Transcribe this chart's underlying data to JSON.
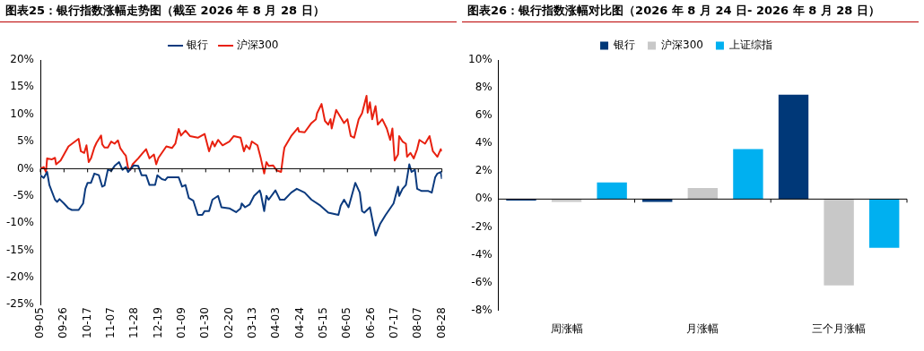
{
  "chart_data": [
    {
      "type": "line",
      "title": "图表25：银行指数涨幅走势图（截至 2026 年 8 月 28 日）",
      "legend": "top",
      "grid": false,
      "ref_lines": [
        {
          "axis": "y",
          "value": 0,
          "color": "#000000"
        }
      ],
      "marker": "none",
      "line_style": "solid",
      "xlim": [
        "2025-09-05",
        "2026-08-28"
      ],
      "xticks": [
        {
          "value": "2025-09-05",
          "label": "09-05"
        },
        {
          "value": "2025-09-26",
          "label": "09-26"
        },
        {
          "value": "2025-10-17",
          "label": "10-17"
        },
        {
          "value": "2025-11-07",
          "label": "11-07"
        },
        {
          "value": "2025-11-28",
          "label": "11-28"
        },
        {
          "value": "2025-12-19",
          "label": "12-19"
        },
        {
          "value": "2026-01-09",
          "label": "01-09"
        },
        {
          "value": "2026-01-30",
          "label": "01-30"
        },
        {
          "value": "2026-02-20",
          "label": "02-20"
        },
        {
          "value": "2026-03-13",
          "label": "03-13"
        },
        {
          "value": "2026-04-03",
          "label": "04-03"
        },
        {
          "value": "2026-04-24",
          "label": "04-24"
        },
        {
          "value": "2026-05-15",
          "label": "05-15"
        },
        {
          "value": "2026-06-05",
          "label": "06-05"
        },
        {
          "value": "2026-06-26",
          "label": "06-26"
        },
        {
          "value": "2026-07-17",
          "label": "07-17"
        },
        {
          "value": "2026-08-07",
          "label": "08-07"
        },
        {
          "value": "2026-08-28",
          "label": "08-28"
        }
      ],
      "ylim": [
        -25,
        20
      ],
      "yticks": [
        {
          "value": -25,
          "label": "-25%"
        },
        {
          "value": -20,
          "label": "-20%"
        },
        {
          "value": -15,
          "label": "-15%"
        },
        {
          "value": -10,
          "label": "-10%"
        },
        {
          "value": -5,
          "label": "-5%"
        },
        {
          "value": 0,
          "label": "0%"
        },
        {
          "value": 5,
          "label": "5%"
        },
        {
          "value": 10,
          "label": "10%"
        },
        {
          "value": 15,
          "label": "15%"
        },
        {
          "value": 20,
          "label": "20%"
        }
      ],
      "series": [
        {
          "name": "银行",
          "color": "#0b3a7e",
          "x": [
            "2025-09-05",
            "2025-09-08",
            "2025-09-11",
            "2025-09-13",
            "2025-09-18",
            "2025-09-20",
            "2025-09-22",
            "2025-09-26",
            "2025-09-30",
            "2025-10-03",
            "2025-10-09",
            "2025-10-13",
            "2025-10-15",
            "2025-10-17",
            "2025-10-20",
            "2025-10-23",
            "2025-10-27",
            "2025-10-30",
            "2025-11-01",
            "2025-11-04",
            "2025-11-07",
            "2025-11-10",
            "2025-11-14",
            "2025-11-17",
            "2025-11-20",
            "2025-11-22",
            "2025-11-27",
            "2025-12-01",
            "2025-12-04",
            "2025-12-08",
            "2025-12-11",
            "2025-12-16",
            "2025-12-18",
            "2025-12-22",
            "2025-12-25",
            "2025-12-27",
            "2026-01-01",
            "2026-01-06",
            "2026-01-09",
            "2026-01-12",
            "2026-01-15",
            "2026-01-19",
            "2026-01-23",
            "2026-01-27",
            "2026-01-29",
            "2026-02-02",
            "2026-02-05",
            "2026-02-10",
            "2026-02-13",
            "2026-02-20",
            "2026-02-26",
            "2026-03-02",
            "2026-03-03",
            "2026-03-06",
            "2026-03-10",
            "2026-03-14",
            "2026-03-19",
            "2026-03-20",
            "2026-03-23",
            "2026-03-25",
            "2026-03-27",
            "2026-04-02",
            "2026-04-06",
            "2026-04-10",
            "2026-04-16",
            "2026-04-21",
            "2026-04-28",
            "2026-05-04",
            "2026-05-12",
            "2026-05-19",
            "2026-05-28",
            "2026-05-30",
            "2026-06-02",
            "2026-06-06",
            "2026-06-12",
            "2026-06-16",
            "2026-06-18",
            "2026-06-20",
            "2026-06-25",
            "2026-06-29",
            "2026-06-30",
            "2026-07-04",
            "2026-07-09",
            "2026-07-16",
            "2026-07-20",
            "2026-07-21",
            "2026-07-24",
            "2026-07-27",
            "2026-07-30",
            "2026-08-01",
            "2026-08-04",
            "2026-08-06",
            "2026-08-10",
            "2026-08-16",
            "2026-08-19",
            "2026-08-22",
            "2026-08-24",
            "2026-08-27",
            "2026-08-28"
          ],
          "values": [
            -1.2,
            -1.7,
            -0.6,
            -3.0,
            -5.7,
            -6.1,
            -5.6,
            -6.4,
            -7.3,
            -7.6,
            -7.6,
            -6.4,
            -3.7,
            -2.6,
            -2.6,
            -0.9,
            -1.2,
            -3.3,
            -3.1,
            -0.2,
            -0.4,
            0.5,
            1.2,
            -0.2,
            0.3,
            -0.6,
            0.6,
            0.5,
            -1.2,
            -1.2,
            -3.0,
            -3.0,
            -1.2,
            -1.9,
            -2.1,
            -1.6,
            -1.6,
            -1.6,
            -3.3,
            -3.0,
            -5.4,
            -5.9,
            -8.5,
            -8.5,
            -7.8,
            -7.8,
            -5.7,
            -5.0,
            -7.1,
            -7.3,
            -8.0,
            -7.3,
            -6.4,
            -7.1,
            -6.6,
            -5.0,
            -4.0,
            -4.6,
            -7.8,
            -5.0,
            -5.7,
            -4.0,
            -5.7,
            -5.7,
            -4.4,
            -3.7,
            -4.4,
            -5.7,
            -6.8,
            -8.1,
            -8.5,
            -6.8,
            -5.7,
            -7.1,
            -2.6,
            -4.4,
            -7.8,
            -8.1,
            -7.1,
            -11.3,
            -12.3,
            -10.2,
            -8.5,
            -6.4,
            -3.3,
            -5.0,
            -3.7,
            -3.0,
            0.8,
            -0.6,
            -0.2,
            -3.7,
            -4.1,
            -4.1,
            -4.4,
            -1.6,
            -0.9,
            -0.6,
            -1.9
          ]
        },
        {
          "name": "沪深300",
          "color": "#e8200f",
          "x": [
            "2025-09-05",
            "2025-09-08",
            "2025-09-10",
            "2025-09-11",
            "2025-09-15",
            "2025-09-18",
            "2025-09-19",
            "2025-09-23",
            "2025-09-26",
            "2025-09-30",
            "2025-10-09",
            "2025-10-11",
            "2025-10-14",
            "2025-10-16",
            "2025-10-18",
            "2025-10-20",
            "2025-10-23",
            "2025-10-25",
            "2025-10-29",
            "2025-10-30",
            "2025-11-01",
            "2025-11-04",
            "2025-11-07",
            "2025-11-10",
            "2025-11-13",
            "2025-11-15",
            "2025-11-18",
            "2025-11-20",
            "2025-11-22",
            "2025-11-24",
            "2025-11-26",
            "2025-12-01",
            "2025-12-05",
            "2025-12-08",
            "2025-12-11",
            "2025-12-15",
            "2025-12-17",
            "2025-12-19",
            "2025-12-26",
            "2025-12-31",
            "2026-01-03",
            "2026-01-06",
            "2026-01-08",
            "2026-01-12",
            "2026-01-16",
            "2026-01-23",
            "2026-01-29",
            "2026-02-02",
            "2026-02-05",
            "2026-02-07",
            "2026-02-10",
            "2026-02-14",
            "2026-02-20",
            "2026-02-24",
            "2026-03-02",
            "2026-03-05",
            "2026-03-07",
            "2026-03-10",
            "2026-03-12",
            "2026-03-17",
            "2026-03-20",
            "2026-03-23",
            "2026-03-25",
            "2026-03-27",
            "2026-03-31",
            "2026-04-03",
            "2026-04-07",
            "2026-04-09",
            "2026-04-10",
            "2026-04-16",
            "2026-04-22",
            "2026-04-23",
            "2026-04-28",
            "2026-05-04",
            "2026-05-08",
            "2026-05-09",
            "2026-05-13",
            "2026-05-16",
            "2026-05-19",
            "2026-05-21",
            "2026-05-22",
            "2026-05-26",
            "2026-05-29",
            "2026-06-02",
            "2026-06-05",
            "2026-06-08",
            "2026-06-11",
            "2026-06-15",
            "2026-06-18",
            "2026-06-22",
            "2026-06-23",
            "2026-06-25",
            "2026-06-27",
            "2026-06-30",
            "2026-07-02",
            "2026-07-06",
            "2026-07-10",
            "2026-07-13",
            "2026-07-15",
            "2026-07-17",
            "2026-07-20",
            "2026-07-21",
            "2026-07-24",
            "2026-07-27",
            "2026-07-28",
            "2026-07-31",
            "2026-08-03",
            "2026-08-06",
            "2026-08-08",
            "2026-08-13",
            "2026-08-17",
            "2026-08-20",
            "2026-08-24",
            "2026-08-27",
            "2026-08-28"
          ],
          "values": [
            0,
            0.3,
            -0.6,
            1.9,
            1.7,
            2.0,
            0.8,
            1.5,
            2.6,
            4.1,
            5.5,
            3.2,
            2.9,
            4.3,
            1.2,
            1.9,
            3.9,
            4.8,
            6.1,
            4.5,
            3.9,
            3.9,
            5.0,
            4.6,
            5.2,
            3.8,
            2.9,
            2.4,
            0.1,
            -0.2,
            0.8,
            1.9,
            2.9,
            3.6,
            1.9,
            2.6,
            0.8,
            2.0,
            4.1,
            3.8,
            4.6,
            7.3,
            6.1,
            7.0,
            6.0,
            5.7,
            6.4,
            3.2,
            5.0,
            4.1,
            5.3,
            4.3,
            5.0,
            6.0,
            5.7,
            3.2,
            4.3,
            3.6,
            5.0,
            4.3,
            1.9,
            -0.9,
            1.2,
            0.5,
            0.6,
            -0.3,
            -0.6,
            2.6,
            3.9,
            6.0,
            7.5,
            6.8,
            6.7,
            8.4,
            9.1,
            10.2,
            11.9,
            8.8,
            8.1,
            9.1,
            7.4,
            10.8,
            9.8,
            8.4,
            9.1,
            6.0,
            5.7,
            9.1,
            10.2,
            13.4,
            10.3,
            12.2,
            9.1,
            11.5,
            8.1,
            9.1,
            7.4,
            5.3,
            7.4,
            1.5,
            2.6,
            6.0,
            5.0,
            4.6,
            2.2,
            2.9,
            1.9,
            3.6,
            5.3,
            4.6,
            6.0,
            3.2,
            2.2,
            3.6,
            3.2
          ]
        }
      ]
    },
    {
      "type": "bar",
      "title": "图表26：银行指数涨幅对比图（2026 年 8 月 24 日- 2026 年 8 月 28 日）",
      "legend": "top",
      "grid": false,
      "ref_lines": [
        {
          "axis": "y",
          "value": 0,
          "color": "#000000"
        }
      ],
      "categories": [
        "周涨幅",
        "月涨幅",
        "三个月涨幅"
      ],
      "ylim": [
        -8,
        10
      ],
      "yticks": [
        {
          "value": -8,
          "label": "-8%"
        },
        {
          "value": -6,
          "label": "-6%"
        },
        {
          "value": -4,
          "label": "-4%"
        },
        {
          "value": -2,
          "label": "-2%"
        },
        {
          "value": 0,
          "label": "0%"
        },
        {
          "value": 2,
          "label": "2%"
        },
        {
          "value": 4,
          "label": "4%"
        },
        {
          "value": 6,
          "label": "6%"
        },
        {
          "value": 8,
          "label": "8%"
        },
        {
          "value": 10,
          "label": "10%"
        }
      ],
      "series": [
        {
          "name": "银行",
          "color": "#003878",
          "values": [
            -0.1,
            -0.2,
            7.5
          ]
        },
        {
          "name": "沪深300",
          "color": "#c8c8c8",
          "values": [
            -0.2,
            0.8,
            -6.2
          ]
        },
        {
          "name": "上证综指",
          "color": "#00b0f0",
          "values": [
            1.2,
            3.6,
            -3.5
          ]
        }
      ]
    }
  ]
}
